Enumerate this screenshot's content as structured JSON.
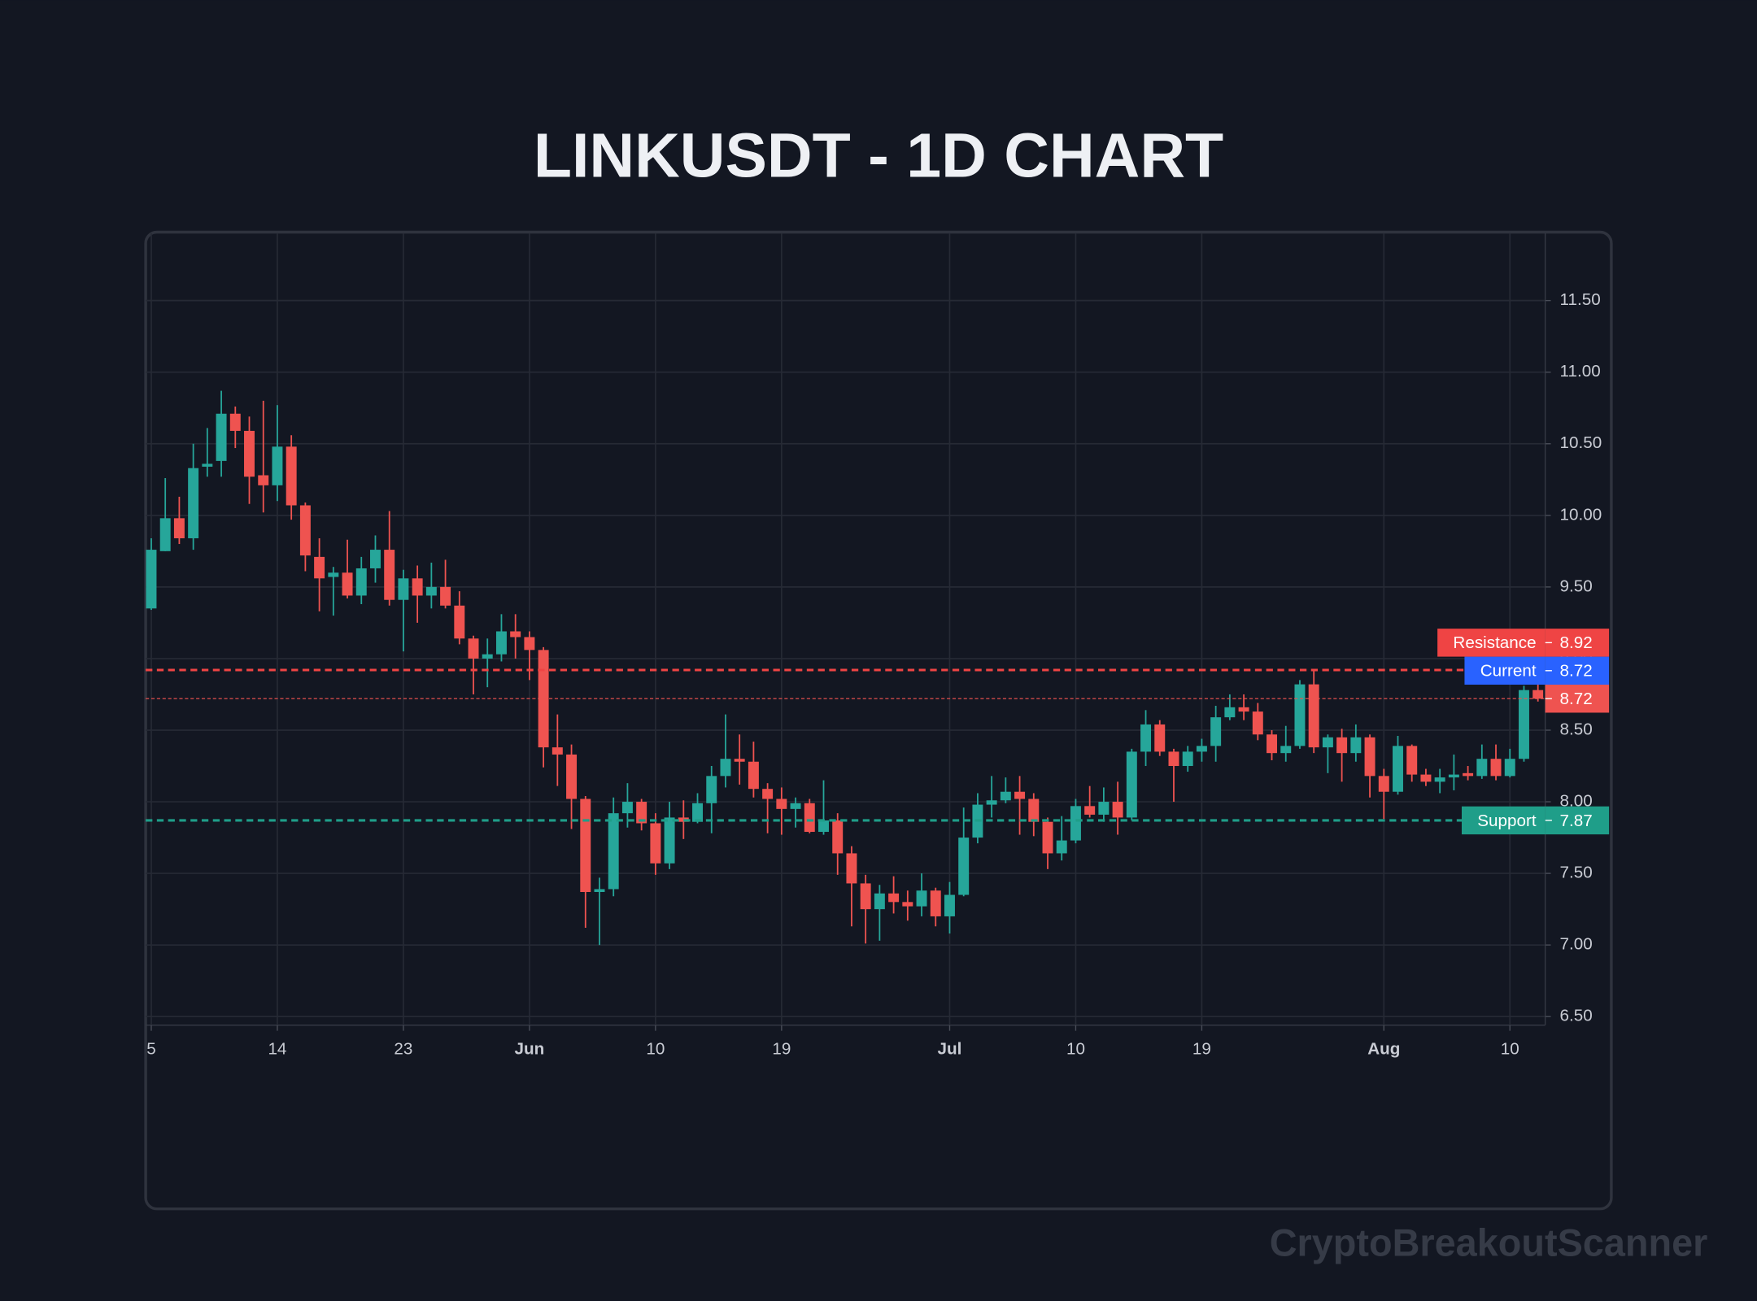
{
  "chart_data": {
    "type": "candlestick",
    "title": "LINKUSDT - 1D CHART",
    "watermark": "CryptoBreakoutScanner",
    "x": [
      "May 5",
      "May 6",
      "May 7",
      "May 8",
      "May 9",
      "May 10",
      "May 11",
      "May 12",
      "May 13",
      "May 14",
      "May 15",
      "May 16",
      "May 17",
      "May 18",
      "May 19",
      "May 20",
      "May 21",
      "May 22",
      "May 23",
      "May 24",
      "May 25",
      "May 26",
      "May 27",
      "May 28",
      "May 29",
      "May 30",
      "May 31",
      "Jun 1",
      "Jun 2",
      "Jun 3",
      "Jun 4",
      "Jun 5",
      "Jun 6",
      "Jun 7",
      "Jun 8",
      "Jun 9",
      "Jun 10",
      "Jun 11",
      "Jun 12",
      "Jun 13",
      "Jun 14",
      "Jun 15",
      "Jun 16",
      "Jun 17",
      "Jun 18",
      "Jun 19",
      "Jun 20",
      "Jun 21",
      "Jun 22",
      "Jun 23",
      "Jun 24",
      "Jun 25",
      "Jun 26",
      "Jun 27",
      "Jun 28",
      "Jun 29",
      "Jun 30",
      "Jul 1",
      "Jul 2",
      "Jul 3",
      "Jul 4",
      "Jul 5",
      "Jul 6",
      "Jul 7",
      "Jul 8",
      "Jul 9",
      "Jul 10",
      "Jul 11",
      "Jul 12",
      "Jul 13",
      "Jul 14",
      "Jul 15",
      "Jul 16",
      "Jul 17",
      "Jul 18",
      "Jul 19",
      "Jul 20",
      "Jul 21",
      "Jul 22",
      "Jul 23",
      "Jul 24",
      "Jul 25",
      "Jul 26",
      "Jul 27",
      "Jul 28",
      "Jul 29",
      "Jul 30",
      "Jul 31",
      "Aug 1",
      "Aug 2",
      "Aug 3",
      "Aug 4",
      "Aug 5",
      "Aug 6",
      "Aug 7",
      "Aug 8",
      "Aug 9",
      "Aug 10",
      "Aug 11",
      "Aug 12"
    ],
    "open": [
      9.35,
      9.75,
      9.98,
      9.84,
      10.34,
      10.38,
      10.71,
      10.59,
      10.28,
      10.21,
      10.48,
      10.07,
      9.71,
      9.57,
      9.6,
      9.44,
      9.63,
      9.76,
      9.41,
      9.56,
      9.44,
      9.5,
      9.37,
      9.14,
      9.0,
      9.03,
      9.19,
      9.15,
      9.06,
      8.38,
      8.33,
      8.02,
      7.37,
      7.39,
      7.92,
      8.0,
      7.85,
      7.57,
      7.89,
      7.86,
      7.99,
      8.18,
      8.3,
      8.28,
      8.09,
      8.02,
      7.95,
      7.99,
      7.79,
      7.87,
      7.64,
      7.43,
      7.25,
      7.36,
      7.3,
      7.27,
      7.38,
      7.2,
      7.35,
      7.75,
      7.98,
      8.01,
      8.07,
      8.02,
      7.86,
      7.64,
      7.73,
      7.97,
      7.91,
      8.0,
      7.89,
      8.35,
      8.54,
      8.35,
      8.25,
      8.35,
      8.39,
      8.59,
      8.66,
      8.63,
      8.47,
      8.34,
      8.39,
      8.82,
      8.38,
      8.45,
      8.34,
      8.45,
      8.18,
      8.07,
      8.39,
      8.19,
      8.14,
      8.17,
      8.2,
      8.18,
      8.3,
      8.18,
      8.3,
      8.78
    ],
    "high": [
      9.84,
      10.26,
      10.13,
      10.5,
      10.61,
      10.87,
      10.76,
      10.69,
      10.8,
      10.77,
      10.56,
      10.09,
      9.84,
      9.64,
      9.83,
      9.71,
      9.86,
      10.03,
      9.62,
      9.65,
      9.67,
      9.69,
      9.47,
      9.16,
      9.14,
      9.31,
      9.31,
      9.19,
      9.08,
      8.61,
      8.4,
      8.04,
      7.47,
      8.03,
      8.13,
      8.02,
      7.92,
      8.0,
      8.01,
      8.06,
      8.25,
      8.61,
      8.47,
      8.42,
      8.13,
      8.1,
      8.03,
      8.02,
      8.15,
      7.92,
      7.69,
      7.49,
      7.42,
      7.48,
      7.38,
      7.5,
      7.4,
      7.44,
      7.96,
      8.06,
      8.18,
      8.17,
      8.18,
      8.06,
      7.89,
      7.9,
      8.02,
      8.11,
      8.1,
      8.14,
      8.37,
      8.64,
      8.57,
      8.37,
      8.39,
      8.44,
      8.67,
      8.75,
      8.75,
      8.69,
      8.5,
      8.53,
      8.85,
      8.92,
      8.47,
      8.51,
      8.54,
      8.47,
      8.23,
      8.46,
      8.4,
      8.23,
      8.23,
      8.33,
      8.25,
      8.4,
      8.4,
      8.37,
      8.81,
      8.82
    ],
    "low": [
      9.34,
      9.75,
      9.8,
      9.76,
      10.27,
      10.27,
      10.47,
      10.08,
      10.02,
      10.1,
      9.97,
      9.61,
      9.33,
      9.3,
      9.42,
      9.38,
      9.53,
      9.37,
      9.05,
      9.25,
      9.35,
      9.35,
      9.1,
      8.75,
      8.8,
      8.98,
      9.0,
      8.85,
      8.24,
      8.11,
      7.81,
      7.12,
      7.0,
      7.34,
      7.82,
      7.8,
      7.49,
      7.53,
      7.74,
      7.85,
      7.78,
      8.1,
      8.12,
      8.03,
      7.78,
      7.77,
      7.82,
      7.78,
      7.77,
      7.49,
      7.13,
      7.01,
      7.03,
      7.22,
      7.17,
      7.2,
      7.13,
      7.08,
      7.34,
      7.71,
      7.89,
      7.99,
      7.77,
      7.76,
      7.53,
      7.59,
      7.71,
      7.89,
      7.86,
      7.77,
      7.87,
      8.25,
      8.32,
      8.0,
      8.21,
      8.28,
      8.28,
      8.57,
      8.57,
      8.43,
      8.29,
      8.28,
      8.37,
      8.34,
      8.2,
      8.14,
      8.28,
      8.03,
      7.88,
      8.05,
      8.14,
      8.11,
      8.06,
      8.08,
      8.15,
      8.16,
      8.15,
      8.17,
      8.28,
      8.7
    ],
    "close": [
      9.76,
      9.98,
      9.84,
      10.33,
      10.36,
      10.71,
      10.59,
      10.27,
      10.21,
      10.48,
      10.07,
      9.72,
      9.56,
      9.6,
      9.44,
      9.63,
      9.76,
      9.41,
      9.56,
      9.44,
      9.5,
      9.37,
      9.14,
      9.0,
      9.03,
      9.19,
      9.15,
      9.06,
      8.38,
      8.33,
      8.02,
      7.37,
      7.39,
      7.92,
      8.0,
      7.85,
      7.57,
      7.89,
      7.86,
      7.99,
      8.18,
      8.3,
      8.28,
      8.09,
      8.02,
      7.95,
      7.99,
      7.79,
      7.87,
      7.64,
      7.43,
      7.25,
      7.36,
      7.3,
      7.27,
      7.38,
      7.2,
      7.35,
      7.75,
      7.98,
      8.01,
      8.07,
      8.02,
      7.86,
      7.64,
      7.73,
      7.97,
      7.91,
      8.0,
      7.89,
      8.35,
      8.54,
      8.35,
      8.25,
      8.35,
      8.39,
      8.59,
      8.66,
      8.63,
      8.47,
      8.34,
      8.39,
      8.82,
      8.38,
      8.45,
      8.34,
      8.45,
      8.18,
      8.07,
      8.39,
      8.19,
      8.14,
      8.17,
      8.19,
      8.18,
      8.3,
      8.18,
      8.3,
      8.78,
      8.72
    ],
    "up_color": "#26a69a",
    "down_color": "#ef5350",
    "ylim": [
      6.44,
      11.97
    ],
    "yticks": [
      {
        "value": 6.5,
        "label": "6.50"
      },
      {
        "value": 7,
        "label": "7.00"
      },
      {
        "value": 7.5,
        "label": "7.50"
      },
      {
        "value": 8,
        "label": "8.00"
      },
      {
        "value": 8.5,
        "label": "8.50"
      },
      {
        "value": 9,
        "label": "9.00"
      },
      {
        "value": 9.5,
        "label": "9.50"
      },
      {
        "value": 10,
        "label": "10.00"
      },
      {
        "value": 10.5,
        "label": "10.50"
      },
      {
        "value": 11,
        "label": "11.00"
      },
      {
        "value": 11.5,
        "label": "11.50"
      }
    ],
    "xticks": [
      {
        "value": "May 5",
        "label": "5"
      },
      {
        "value": "May 14",
        "label": "14"
      },
      {
        "value": "May 23",
        "label": "23"
      },
      {
        "value": "Jun 1",
        "label": "Jun"
      },
      {
        "value": "Jun 10",
        "label": "10"
      },
      {
        "value": "Jun 19",
        "label": "19"
      },
      {
        "value": "Jul 1",
        "label": "Jul"
      },
      {
        "value": "Jul 10",
        "label": "10"
      },
      {
        "value": "Jul 19",
        "label": "19"
      },
      {
        "value": "Aug 1",
        "label": "Aug"
      },
      {
        "value": "Aug 10",
        "label": "10"
      }
    ],
    "grid": true,
    "levels": [
      {
        "name": "Resistance",
        "value": 8.92,
        "color": "#ef4444",
        "line": true
      },
      {
        "name": "Current",
        "value": 8.72,
        "color": "#2962ff",
        "line": false
      },
      {
        "name": "Support",
        "value": 7.87,
        "color": "#1f9e89",
        "line": true
      }
    ]
  }
}
